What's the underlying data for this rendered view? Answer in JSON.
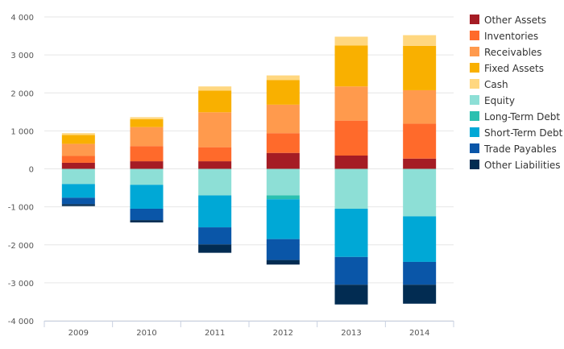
{
  "chart_data": {
    "type": "bar",
    "stacked": true,
    "title": "",
    "xlabel": "",
    "ylabel": "",
    "categories": [
      "2009",
      "2010",
      "2011",
      "2012",
      "2013",
      "2014"
    ],
    "ylim": [
      -4000,
      4000
    ],
    "y_ticks": [
      4000,
      3000,
      2000,
      1000,
      0,
      -1000,
      -2000,
      -3000,
      -4000
    ],
    "y_tick_labels": [
      "4 000",
      "3 000",
      "2 000",
      "1 000",
      "0",
      "-1 000",
      "-2 000",
      "-3 000",
      "-4 000"
    ],
    "grid": true,
    "legend_position": "right",
    "series": [
      {
        "name": "Other Assets",
        "color": "#a51c24",
        "values": [
          160,
          200,
          200,
          420,
          350,
          270
        ]
      },
      {
        "name": "Inventories",
        "color": "#ff6a2b",
        "values": [
          180,
          400,
          370,
          520,
          920,
          920
        ]
      },
      {
        "name": "Receivables",
        "color": "#ff9a4d",
        "values": [
          320,
          500,
          920,
          750,
          900,
          880
        ]
      },
      {
        "name": "Fixed Assets",
        "color": "#f9b000",
        "values": [
          230,
          210,
          570,
          650,
          1080,
          1170
        ]
      },
      {
        "name": "Cash",
        "color": "#ffd780",
        "values": [
          50,
          50,
          110,
          120,
          230,
          280
        ]
      },
      {
        "name": "Equity",
        "color": "#8ddfd6",
        "values": [
          -400,
          -420,
          -700,
          -700,
          -1050,
          -1250
        ]
      },
      {
        "name": "Long-Term Debt",
        "color": "#2bc0b0",
        "values": [
          0,
          0,
          0,
          -100,
          0,
          0
        ]
      },
      {
        "name": "Short-Term Debt",
        "color": "#00a8d6",
        "values": [
          -360,
          -630,
          -840,
          -1050,
          -1270,
          -1200
        ]
      },
      {
        "name": "Trade Payables",
        "color": "#0a56a8",
        "values": [
          -170,
          -300,
          -450,
          -550,
          -730,
          -600
        ]
      },
      {
        "name": "Other Liabilities",
        "color": "#022c52",
        "values": [
          -50,
          -60,
          -220,
          -120,
          -520,
          -500
        ]
      }
    ]
  }
}
